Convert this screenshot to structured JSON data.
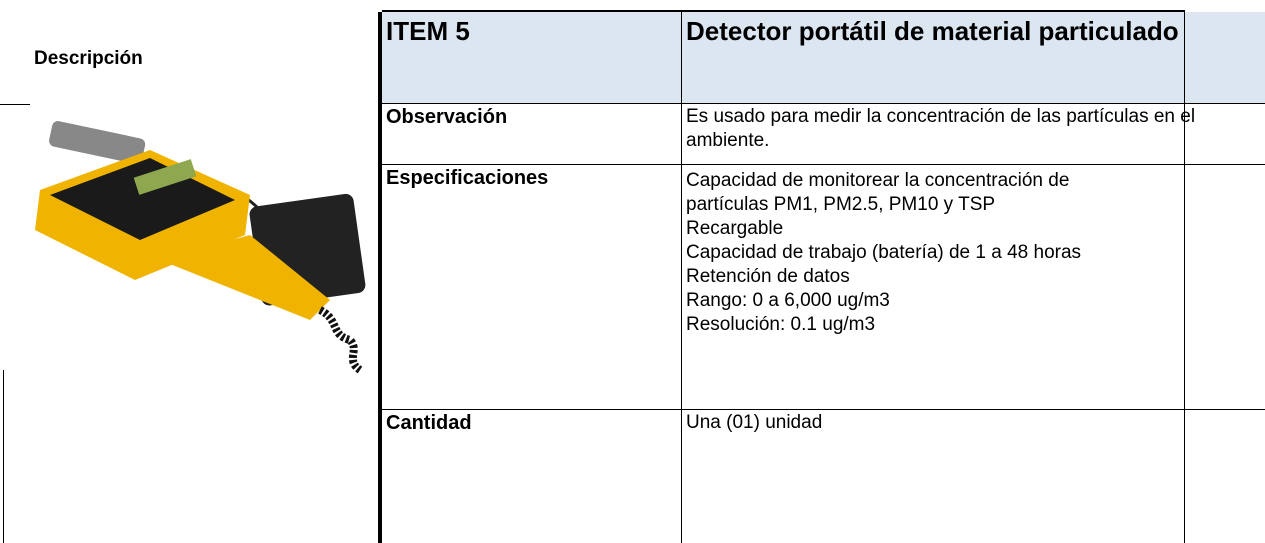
{
  "description_label": "Descripción",
  "table": {
    "header": [
      "ITEM 5",
      "Detector portátil de material particulado"
    ],
    "rows": [
      [
        "Observación",
        "Es usado para medir la concentración de las partículas en el ambiente."
      ],
      [
        "Especificaciones",
        [
          "Capacidad de monitorear la concentración de partículas PM1, PM2.5, PM10 y TSP",
          "Recargable",
          "Capacidad de trabajo (batería) de 1 a 48 horas",
          "Retención de datos",
          "Rango: 0 a 6,000 ug/m3",
          "Resolución: 0.1 ug/m3"
        ]
      ],
      [
        "Cantidad",
        "Una (01) unidad"
      ]
    ]
  }
}
